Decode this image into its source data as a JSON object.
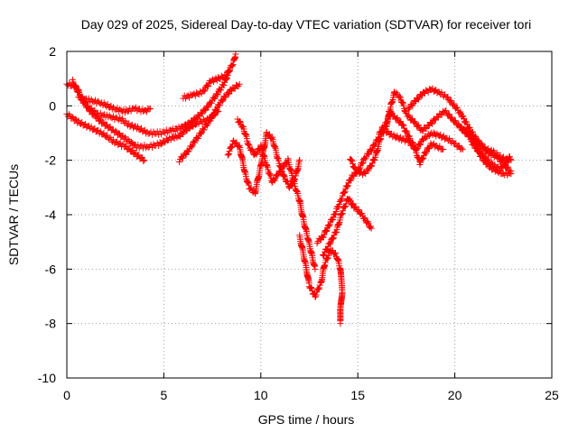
{
  "chart_data": {
    "type": "scatter",
    "title": "Day 029 of 2025, Sidereal Day-to-day VTEC variation (SDTVAR) for receiver tori",
    "xlabel": "GPS time / hours",
    "ylabel": "SDTVAR / TECUs",
    "xlim": [
      0,
      25
    ],
    "ylim": [
      -10,
      2
    ],
    "x_ticks": [
      0,
      5,
      10,
      15,
      20,
      25
    ],
    "y_ticks": [
      2,
      0,
      -2,
      -4,
      -6,
      -8,
      -10
    ],
    "grid": true,
    "marker": "+",
    "series": [
      {
        "name": "SDTVAR",
        "color": "#ff0000",
        "tracks": [
          [
            [
              0.0,
              0.8
            ],
            [
              0.5,
              0.7
            ],
            [
              0.8,
              0.2
            ],
            [
              1.2,
              -0.2
            ],
            [
              1.8,
              -0.6
            ],
            [
              2.4,
              -0.9
            ],
            [
              3.0,
              -1.2
            ],
            [
              3.6,
              -1.5
            ],
            [
              4.2,
              -1.5
            ],
            [
              4.8,
              -1.4
            ],
            [
              5.3,
              -1.2
            ],
            [
              5.8,
              -1.1
            ],
            [
              6.3,
              -0.8
            ],
            [
              6.8,
              -0.6
            ],
            [
              7.3,
              -0.5
            ],
            [
              7.8,
              -0.2
            ]
          ],
          [
            [
              0.0,
              -0.3
            ],
            [
              0.6,
              -0.6
            ],
            [
              1.2,
              -0.8
            ],
            [
              1.8,
              -1.0
            ],
            [
              2.4,
              -1.3
            ],
            [
              3.0,
              -1.5
            ],
            [
              3.6,
              -1.8
            ],
            [
              4.0,
              -2.0
            ]
          ],
          [
            [
              0.6,
              0.3
            ],
            [
              1.2,
              0.2
            ],
            [
              1.8,
              0.1
            ],
            [
              2.4,
              -0.1
            ],
            [
              3.0,
              -0.2
            ],
            [
              3.5,
              -0.1
            ],
            [
              4.0,
              -0.2
            ],
            [
              4.3,
              -0.1
            ]
          ],
          [
            [
              0.3,
              0.9
            ],
            [
              0.6,
              0.5
            ],
            [
              1.0,
              0.0
            ],
            [
              1.6,
              -0.3
            ],
            [
              2.2,
              -0.4
            ],
            [
              2.8,
              -0.5
            ],
            [
              3.2,
              -0.7
            ],
            [
              3.6,
              -0.8
            ],
            [
              4.2,
              -1.0
            ],
            [
              4.8,
              -1.0
            ],
            [
              5.4,
              -0.9
            ],
            [
              5.9,
              -0.8
            ],
            [
              6.4,
              -0.6
            ],
            [
              6.9,
              -0.3
            ],
            [
              7.3,
              0.0
            ],
            [
              7.7,
              0.4
            ],
            [
              8.1,
              0.8
            ],
            [
              8.4,
              1.3
            ]
          ],
          [
            [
              5.8,
              -2.0
            ],
            [
              6.2,
              -1.7
            ],
            [
              6.6,
              -1.3
            ],
            [
              7.0,
              -0.9
            ],
            [
              7.4,
              -0.5
            ],
            [
              7.8,
              0.0
            ],
            [
              8.1,
              0.3
            ],
            [
              8.5,
              0.6
            ],
            [
              8.9,
              0.8
            ]
          ],
          [
            [
              6.0,
              0.3
            ],
            [
              6.5,
              0.4
            ],
            [
              7.0,
              0.5
            ],
            [
              7.4,
              0.9
            ],
            [
              7.8,
              1.0
            ],
            [
              8.2,
              1.1
            ],
            [
              8.6,
              1.6
            ],
            [
              8.7,
              1.9
            ]
          ],
          [
            [
              8.3,
              -1.8
            ],
            [
              8.6,
              -1.3
            ],
            [
              8.9,
              -1.5
            ],
            [
              9.2,
              -2.5
            ],
            [
              9.4,
              -3.0
            ],
            [
              9.7,
              -3.2
            ],
            [
              10.0,
              -2.2
            ],
            [
              10.3,
              -1.0
            ],
            [
              10.6,
              -1.2
            ],
            [
              10.9,
              -2.0
            ],
            [
              11.2,
              -2.6
            ],
            [
              11.5,
              -3.0
            ],
            [
              11.8,
              -2.6
            ],
            [
              12.0,
              -2.0
            ]
          ],
          [
            [
              8.8,
              -0.5
            ],
            [
              9.1,
              -0.8
            ],
            [
              9.4,
              -1.5
            ],
            [
              9.7,
              -1.8
            ],
            [
              10.0,
              -1.5
            ],
            [
              10.3,
              -2.2
            ],
            [
              10.6,
              -2.8
            ],
            [
              10.9,
              -2.5
            ],
            [
              11.2,
              -2.2
            ],
            [
              11.4,
              -2.0
            ],
            [
              11.7,
              -2.8
            ],
            [
              12.0,
              -3.5
            ],
            [
              12.2,
              -4.2
            ],
            [
              12.4,
              -4.8
            ],
            [
              12.6,
              -5.4
            ],
            [
              12.8,
              -6.0
            ]
          ],
          [
            [
              12.0,
              -4.8
            ],
            [
              12.3,
              -5.8
            ],
            [
              12.5,
              -6.6
            ],
            [
              12.8,
              -7.0
            ],
            [
              13.1,
              -6.5
            ],
            [
              13.3,
              -5.8
            ],
            [
              13.6,
              -5.3
            ],
            [
              13.9,
              -5.5
            ],
            [
              14.1,
              -6.0
            ],
            [
              14.2,
              -6.8
            ],
            [
              14.1,
              -7.5
            ],
            [
              14.1,
              -8.0
            ]
          ],
          [
            [
              12.9,
              -5.0
            ],
            [
              13.2,
              -4.8
            ],
            [
              13.5,
              -4.4
            ],
            [
              13.8,
              -4.0
            ],
            [
              14.1,
              -3.5
            ],
            [
              14.4,
              -3.0
            ],
            [
              14.7,
              -2.6
            ],
            [
              15.0,
              -2.4
            ],
            [
              15.3,
              -2.0
            ],
            [
              15.6,
              -1.7
            ],
            [
              15.9,
              -1.4
            ],
            [
              16.2,
              -0.9
            ],
            [
              16.5,
              -0.6
            ],
            [
              16.7,
              -0.2
            ]
          ],
          [
            [
              13.2,
              -5.5
            ],
            [
              13.6,
              -5.0
            ],
            [
              13.9,
              -4.6
            ],
            [
              14.2,
              -3.9
            ],
            [
              14.5,
              -3.4
            ],
            [
              14.8,
              -3.7
            ],
            [
              15.1,
              -3.9
            ],
            [
              15.4,
              -4.2
            ],
            [
              15.7,
              -4.5
            ]
          ],
          [
            [
              14.6,
              -1.9
            ],
            [
              14.9,
              -2.4
            ],
            [
              15.3,
              -2.5
            ],
            [
              15.6,
              -2.3
            ],
            [
              15.9,
              -1.9
            ],
            [
              16.2,
              -1.1
            ],
            [
              16.5,
              -0.7
            ],
            [
              16.7,
              0.0
            ],
            [
              16.9,
              0.5
            ],
            [
              17.2,
              0.3
            ],
            [
              17.5,
              -0.3
            ],
            [
              17.9,
              -0.6
            ],
            [
              18.3,
              -0.9
            ],
            [
              18.7,
              -0.7
            ],
            [
              19.1,
              -0.4
            ],
            [
              19.5,
              -0.2
            ],
            [
              19.9,
              -0.5
            ],
            [
              20.3,
              -0.8
            ],
            [
              20.7,
              -1.0
            ],
            [
              21.2,
              -1.4
            ],
            [
              21.7,
              -1.7
            ],
            [
              22.2,
              -1.9
            ],
            [
              22.6,
              -2.2
            ],
            [
              22.9,
              -2.4
            ]
          ],
          [
            [
              16.4,
              -0.9
            ],
            [
              16.8,
              -1.1
            ],
            [
              17.2,
              -1.2
            ],
            [
              17.6,
              -1.3
            ],
            [
              18.0,
              -1.6
            ],
            [
              18.4,
              -1.2
            ],
            [
              18.8,
              -1.0
            ],
            [
              19.2,
              -1.1
            ],
            [
              19.6,
              -1.2
            ],
            [
              20.0,
              -1.4
            ],
            [
              20.4,
              -1.6
            ]
          ],
          [
            [
              16.6,
              -0.2
            ],
            [
              16.9,
              -0.4
            ],
            [
              17.3,
              -0.7
            ],
            [
              17.6,
              -1.1
            ],
            [
              17.9,
              -1.5
            ],
            [
              18.2,
              -2.1
            ],
            [
              18.5,
              -1.7
            ],
            [
              18.8,
              -1.4
            ],
            [
              19.1,
              -1.5
            ],
            [
              19.4,
              -1.6
            ]
          ],
          [
            [
              17.6,
              -0.1
            ],
            [
              18.0,
              0.2
            ],
            [
              18.4,
              0.5
            ],
            [
              18.8,
              0.6
            ],
            [
              19.2,
              0.5
            ],
            [
              19.6,
              0.3
            ],
            [
              20.0,
              0.0
            ],
            [
              20.4,
              -0.4
            ],
            [
              20.8,
              -0.9
            ],
            [
              21.2,
              -1.3
            ],
            [
              21.6,
              -1.6
            ],
            [
              22.0,
              -1.7
            ],
            [
              22.4,
              -1.9
            ],
            [
              22.8,
              -2.0
            ]
          ],
          [
            [
              20.3,
              -0.8
            ],
            [
              20.7,
              -1.1
            ],
            [
              21.0,
              -1.4
            ],
            [
              21.3,
              -1.8
            ],
            [
              21.6,
              -2.1
            ],
            [
              21.9,
              -2.3
            ],
            [
              22.2,
              -2.4
            ],
            [
              22.5,
              -2.5
            ],
            [
              22.9,
              -2.5
            ]
          ],
          [
            [
              20.9,
              -1.4
            ],
            [
              21.3,
              -1.7
            ],
            [
              21.7,
              -2.0
            ],
            [
              22.0,
              -2.2
            ],
            [
              22.3,
              -2.3
            ],
            [
              22.6,
              -2.2
            ],
            [
              22.8,
              -1.9
            ],
            [
              22.9,
              -2.0
            ]
          ]
        ]
      }
    ]
  }
}
